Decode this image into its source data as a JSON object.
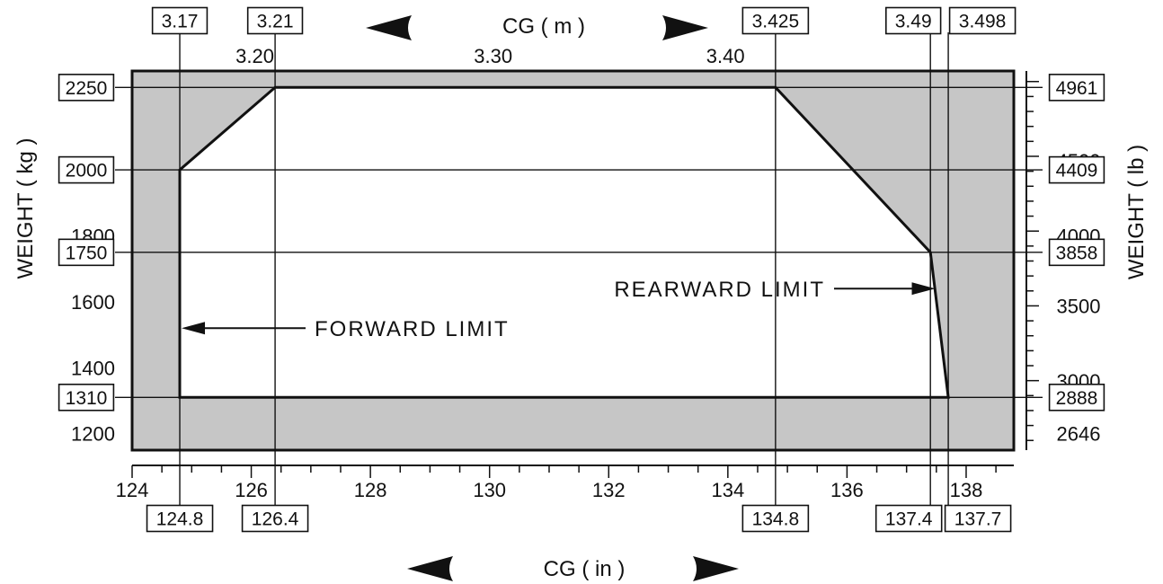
{
  "chart_data": {
    "type": "area",
    "title": "",
    "x_axis": {
      "label": "CG ( in )",
      "range": [
        124,
        138.8
      ],
      "tick_values": [
        124,
        126,
        128,
        130,
        132,
        134,
        136,
        138
      ],
      "tick_labels": [
        "124",
        "126",
        "128",
        "130",
        "132",
        "134",
        "136",
        "138"
      ]
    },
    "x2_axis": {
      "label": "CG ( m )",
      "tick_values_in": [
        126.0,
        130.0,
        133.9
      ],
      "tick_labels": [
        "3.20",
        "3.30",
        "3.40"
      ]
    },
    "y_axis": {
      "label": "WEIGHT ( kg )",
      "range": [
        1150,
        2300
      ],
      "tick_values": [
        1200,
        1400,
        1600,
        1800
      ],
      "tick_labels": [
        "1200",
        "1400",
        "1600",
        "1800"
      ]
    },
    "y2_axis": {
      "label": "WEIGHT ( lb )",
      "tick_values_kg": [
        2027,
        1800,
        1587,
        1360,
        1200
      ],
      "tick_labels": [
        "4500",
        "4000",
        "3500",
        "3000",
        "2646"
      ]
    },
    "envelope": {
      "name": "",
      "cg_in": [
        124.8,
        124.8,
        126.4,
        134.8,
        137.4,
        137.7
      ],
      "weight_kg": [
        1310,
        2000,
        2250,
        2250,
        1750,
        1310
      ]
    },
    "reference_lines": {
      "cg_in": [
        124.8,
        126.4,
        134.8,
        137.4,
        137.7
      ],
      "weight_kg": [
        2250,
        2000,
        1750,
        1310
      ]
    },
    "boxed_labels": {
      "top": [
        {
          "text": "3.17",
          "cg_in": 124.8
        },
        {
          "text": "3.21",
          "cg_in": 126.4
        },
        {
          "text": "3.425",
          "cg_in": 134.8
        },
        {
          "text": "3.49",
          "cg_in": 137.4
        },
        {
          "text": "3.498",
          "cg_in": 137.7
        }
      ],
      "bottom": [
        {
          "text": "124.8",
          "cg_in": 124.8
        },
        {
          "text": "126.4",
          "cg_in": 126.4
        },
        {
          "text": "134.8",
          "cg_in": 134.8
        },
        {
          "text": "137.4",
          "cg_in": 137.4
        },
        {
          "text": "137.7",
          "cg_in": 137.7
        }
      ],
      "left": [
        {
          "text": "2250",
          "weight_kg": 2250
        },
        {
          "text": "2000",
          "weight_kg": 2000
        },
        {
          "text": "1750",
          "weight_kg": 1750
        },
        {
          "text": "1310",
          "weight_kg": 1310
        }
      ],
      "right": [
        {
          "text": "4961",
          "weight_kg": 2250
        },
        {
          "text": "4409",
          "weight_kg": 2000
        },
        {
          "text": "3858",
          "weight_kg": 1750
        },
        {
          "text": "2888",
          "weight_kg": 1310
        }
      ]
    },
    "annotations": [
      {
        "text": "FORWARD LIMIT",
        "target_cg_in": 124.8,
        "target_weight_kg": 1520
      },
      {
        "text": "REARWARD LIMIT",
        "target_cg_in": 137.45,
        "target_weight_kg": 1640
      }
    ],
    "legend": "none",
    "grid": false,
    "colors": {
      "excluded_region": "#c6c6c6",
      "envelope": "#ffffff",
      "lines": "#111111"
    }
  }
}
